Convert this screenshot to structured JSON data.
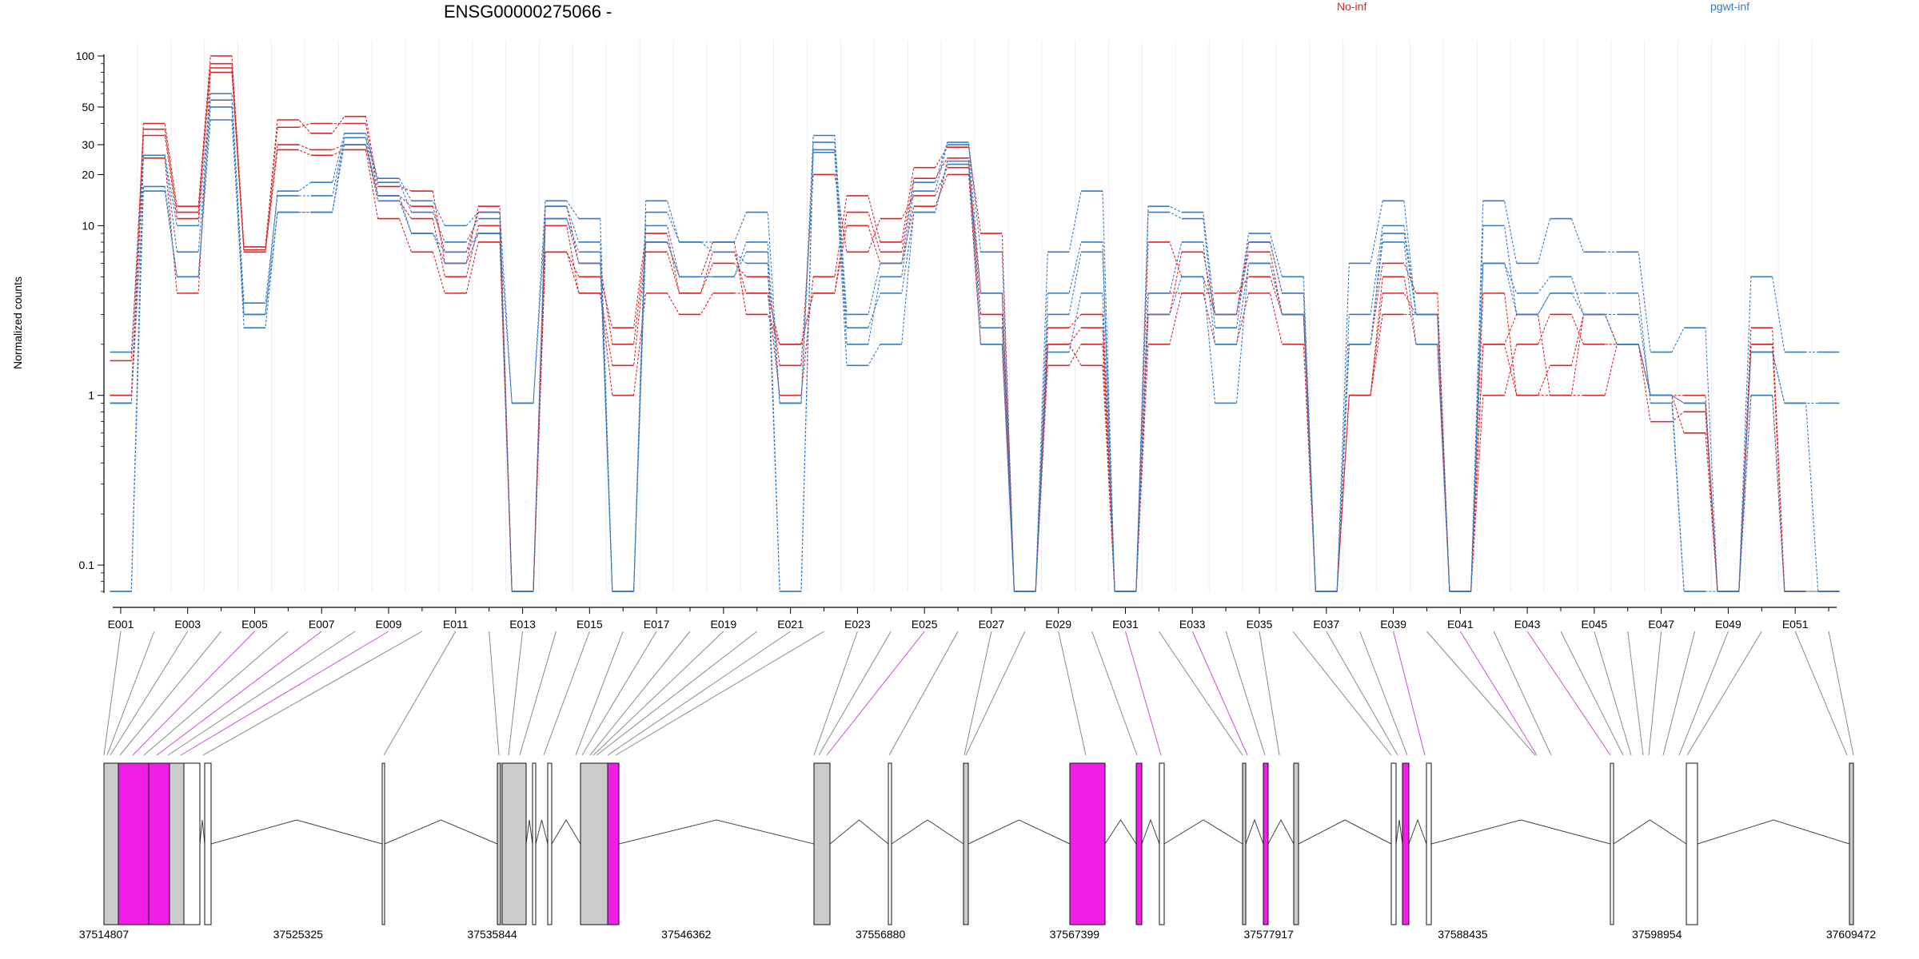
{
  "chart_data": {
    "type": "line",
    "title": "ENSG00000275066 -",
    "ylabel": "Normalized counts",
    "y_scale": "log",
    "ylim": [
      0.07,
      100
    ],
    "y_ticks": [
      0.1,
      1,
      10,
      20,
      30,
      50,
      100
    ],
    "y_tick_labels": [
      "0.1",
      "1",
      "10",
      "20",
      "30",
      "50",
      "100"
    ],
    "x_tick_labels": [
      "E001",
      "E003",
      "E005",
      "E007",
      "E009",
      "E011",
      "E013",
      "E015",
      "E017",
      "E019",
      "E021",
      "E023",
      "E025",
      "E027",
      "E029",
      "E031",
      "E033",
      "E035",
      "E037",
      "E039",
      "E041",
      "E043",
      "E045",
      "E047",
      "E049",
      "E051"
    ],
    "exons": [
      "E001",
      "E002",
      "E003",
      "E004",
      "E005",
      "E006",
      "E007",
      "E008",
      "E009",
      "E010",
      "E011",
      "E012",
      "E013",
      "E014",
      "E015",
      "E016",
      "E017",
      "E018",
      "E019",
      "E020",
      "E021",
      "E022",
      "E023",
      "E024",
      "E025",
      "E026",
      "E027",
      "E028",
      "E029",
      "E030",
      "E031",
      "E032",
      "E033",
      "E034",
      "E035",
      "E036",
      "E037",
      "E038",
      "E039",
      "E040",
      "E041",
      "E042",
      "E043",
      "E044",
      "E045",
      "E046",
      "E047",
      "E048",
      "E049",
      "E050",
      "E051",
      "E052"
    ],
    "grid": true,
    "legend_placement": "top",
    "colors": {
      "No-inf": "#d62728",
      "pgwt-inf": "#3a7bbf",
      "highlight": "#f01ee6",
      "gene_box": "#cccccc"
    },
    "series": [
      {
        "name": "No-inf",
        "group": "No-inf",
        "values": [
          1.0,
          40,
          13,
          100,
          7.5,
          42,
          35,
          44,
          17,
          16,
          6,
          13,
          0.07,
          7,
          5,
          2.5,
          9,
          4,
          7,
          4,
          1.0,
          5,
          15,
          8,
          22,
          29,
          9,
          0.07,
          2.5,
          3,
          0.07,
          8,
          5,
          3,
          8,
          4,
          0.07,
          2,
          6,
          4,
          0.07,
          2,
          3,
          1.0,
          3,
          2,
          1.0,
          1.0,
          0.07,
          1.0,
          0.07,
          0.07
        ]
      },
      {
        "name": "No-inf",
        "group": "No-inf",
        "values": [
          1.6,
          37,
          12,
          90,
          7,
          38,
          40,
          40,
          15,
          13,
          7,
          12,
          0.07,
          13,
          6,
          2,
          8,
          5,
          8,
          3,
          2,
          4,
          12,
          7,
          19,
          25,
          3,
          0.07,
          2,
          2.5,
          0.07,
          3,
          7,
          3,
          7,
          3,
          0.07,
          1.0,
          5,
          2,
          0.07,
          1.0,
          2,
          3,
          2,
          2,
          1.0,
          0.6,
          0.07,
          2,
          0.07,
          0.07
        ]
      },
      {
        "name": "No-inf",
        "group": "No-inf",
        "values": [
          0.9,
          34,
          11,
          85,
          7.2,
          30,
          28,
          30,
          14,
          11,
          5,
          10,
          0.07,
          10,
          4,
          1.5,
          7,
          4,
          6,
          5,
          1.5,
          20,
          7,
          11,
          15,
          22,
          4,
          0.07,
          1.5,
          2,
          0.07,
          4,
          4,
          4,
          5,
          3,
          0.07,
          1.0,
          4,
          3,
          0.07,
          4,
          1.0,
          1.0,
          1.0,
          2,
          0.7,
          0.8,
          0.07,
          2.5,
          0.07,
          0.07
        ]
      },
      {
        "name": "No-inf",
        "group": "No-inf",
        "values": [
          1.0,
          25,
          4,
          80,
          7,
          28,
          26,
          28,
          11,
          7,
          4,
          8,
          0.07,
          7,
          4,
          1.0,
          4,
          3,
          4,
          4,
          2,
          4,
          10,
          6,
          13,
          20,
          2,
          0.07,
          2,
          1.5,
          0.07,
          2,
          4,
          2,
          4,
          2,
          0.07,
          1.0,
          3,
          3,
          0.07,
          2,
          1.0,
          1.5,
          3,
          2,
          1.0,
          0.9,
          0.07,
          2,
          0.07,
          0.07
        ]
      },
      {
        "name": "pgwt-inf",
        "group": "pgwt-inf",
        "values": [
          0.07,
          26,
          10,
          60,
          3,
          16,
          18,
          35,
          19,
          14,
          10,
          12,
          0.9,
          14,
          11,
          0.07,
          14,
          8,
          8,
          12,
          0.9,
          34,
          3,
          6,
          18,
          31,
          7,
          0.07,
          7,
          16,
          0.07,
          13,
          12,
          3,
          9,
          5,
          0.07,
          6,
          14,
          3,
          0.07,
          14,
          6,
          11,
          7,
          7,
          1.8,
          2.5,
          0.07,
          5,
          1.8,
          1.8
        ]
      },
      {
        "name": "pgwt-inf",
        "group": "pgwt-inf",
        "values": [
          1.8,
          26,
          7,
          55,
          3.5,
          15,
          15,
          33,
          18,
          12,
          8,
          11,
          0.07,
          13,
          8,
          0.07,
          12,
          8,
          7,
          6,
          0.07,
          31,
          2,
          5,
          16,
          30,
          4,
          0.07,
          4,
          8,
          0.07,
          12,
          11,
          2.5,
          8,
          4,
          0.07,
          3,
          10,
          3,
          0.07,
          10,
          3,
          4,
          4,
          4,
          0.9,
          0.07,
          0.07,
          1.8,
          0.9,
          0.07
        ]
      },
      {
        "name": "pgwt-inf",
        "group": "pgwt-inf",
        "values": [
          0.9,
          16,
          5,
          50,
          2.5,
          12,
          12,
          30,
          15,
          9,
          6,
          9,
          0.9,
          11,
          7,
          0.07,
          10,
          5,
          5,
          7,
          0.9,
          28,
          2.5,
          4,
          12,
          24,
          2.5,
          0.07,
          3,
          7,
          0.07,
          4,
          8,
          2,
          6,
          3,
          0.07,
          2,
          8,
          2,
          0.07,
          6,
          4,
          5,
          3,
          3,
          1.0,
          0.9,
          0.07,
          1.8,
          0.9,
          0.9
        ]
      },
      {
        "name": "pgwt-inf",
        "group": "pgwt-inf",
        "values": [
          0.07,
          17,
          5,
          42,
          3,
          12,
          12,
          33,
          14,
          9,
          7,
          9,
          0.07,
          11,
          6,
          0.07,
          8,
          5,
          5,
          8,
          0.07,
          27,
          1.5,
          2,
          12,
          23,
          2,
          0.07,
          1.8,
          4,
          0.07,
          3,
          5,
          0.9,
          6,
          3,
          0.07,
          2,
          9,
          3,
          0.07,
          6,
          3,
          4,
          3,
          2,
          1.0,
          0.07,
          0.07,
          1.0,
          0.07,
          0.07
        ]
      }
    ],
    "genomic_axis": {
      "tick_labels": [
        "37514807",
        "37525325",
        "37535844",
        "37546362",
        "37556880",
        "37567399",
        "37577917",
        "37588435",
        "37598954",
        "37609472"
      ]
    },
    "legend": [
      "No-inf",
      "pgwt-inf"
    ]
  }
}
